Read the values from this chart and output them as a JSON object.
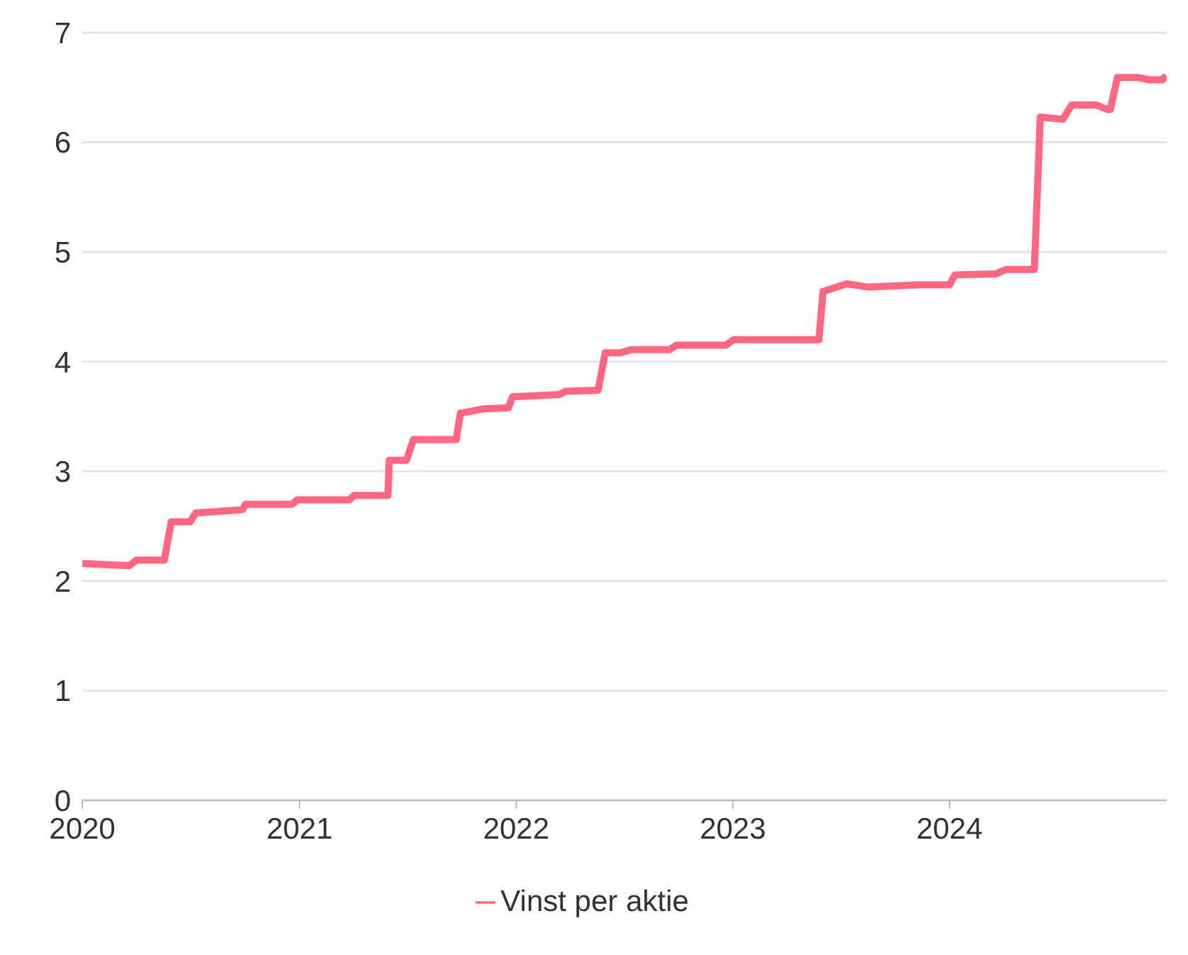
{
  "chart_data": {
    "type": "line",
    "x": [
      "2020-01-01",
      "2020-03-20",
      "2020-04-01",
      "2020-05-18",
      "2020-05-30",
      "2020-07-01",
      "2020-07-10",
      "2020-09-27",
      "2020-10-02",
      "2020-12-20",
      "2020-12-28",
      "2021-03-26",
      "2021-04-03",
      "2021-05-30",
      "2021-06-01",
      "2021-06-30",
      "2021-07-12",
      "2021-09-22",
      "2021-09-29",
      "2021-11-08",
      "2021-12-19",
      "2021-12-26",
      "2022-03-15",
      "2022-03-25",
      "2022-05-19",
      "2022-05-31",
      "2022-06-25",
      "2022-07-14",
      "2022-09-16",
      "2022-09-28",
      "2022-12-20",
      "2023-01-02",
      "2023-05-26",
      "2023-06-02",
      "2023-06-19",
      "2023-07-12",
      "2023-08-17",
      "2023-11-09",
      "2024-01-01",
      "2024-01-10",
      "2024-03-19",
      "2024-04-05",
      "2024-05-23",
      "2024-06-02",
      "2024-07-10",
      "2024-07-25",
      "2024-09-04",
      "2024-09-23",
      "2024-09-28",
      "2024-10-10",
      "2024-11-15",
      "2024-12-02",
      "2024-12-25",
      "2024-12-31"
    ],
    "series": [
      {
        "name": "Vinst per aktie",
        "color": "#ff6680",
        "values": [
          2.16,
          2.14,
          2.19,
          2.19,
          2.54,
          2.54,
          2.62,
          2.65,
          2.7,
          2.7,
          2.74,
          2.74,
          2.78,
          2.78,
          3.1,
          3.1,
          3.29,
          3.29,
          3.53,
          3.57,
          3.58,
          3.68,
          3.7,
          3.73,
          3.74,
          4.08,
          4.08,
          4.11,
          4.11,
          4.15,
          4.15,
          4.2,
          4.2,
          4.64,
          4.67,
          4.71,
          4.68,
          4.7,
          4.7,
          4.79,
          4.8,
          4.84,
          4.84,
          6.23,
          6.21,
          6.34,
          6.34,
          6.3,
          6.3,
          6.59,
          6.59,
          6.57,
          6.57,
          6.61
        ]
      }
    ],
    "xlim": [
      "2020-01-01",
      "2025-01-01"
    ],
    "xticks": [
      {
        "value": "2020-01-01",
        "label": "2020"
      },
      {
        "value": "2021-01-01",
        "label": "2021"
      },
      {
        "value": "2022-01-01",
        "label": "2022"
      },
      {
        "value": "2023-01-01",
        "label": "2023"
      },
      {
        "value": "2024-01-01",
        "label": "2024"
      }
    ],
    "ylim": [
      0,
      7
    ],
    "yticks": [
      0,
      1,
      2,
      3,
      4,
      5,
      6,
      7
    ],
    "grid": "y",
    "legend": "bottom",
    "marker": "none",
    "line_style": "solid"
  }
}
